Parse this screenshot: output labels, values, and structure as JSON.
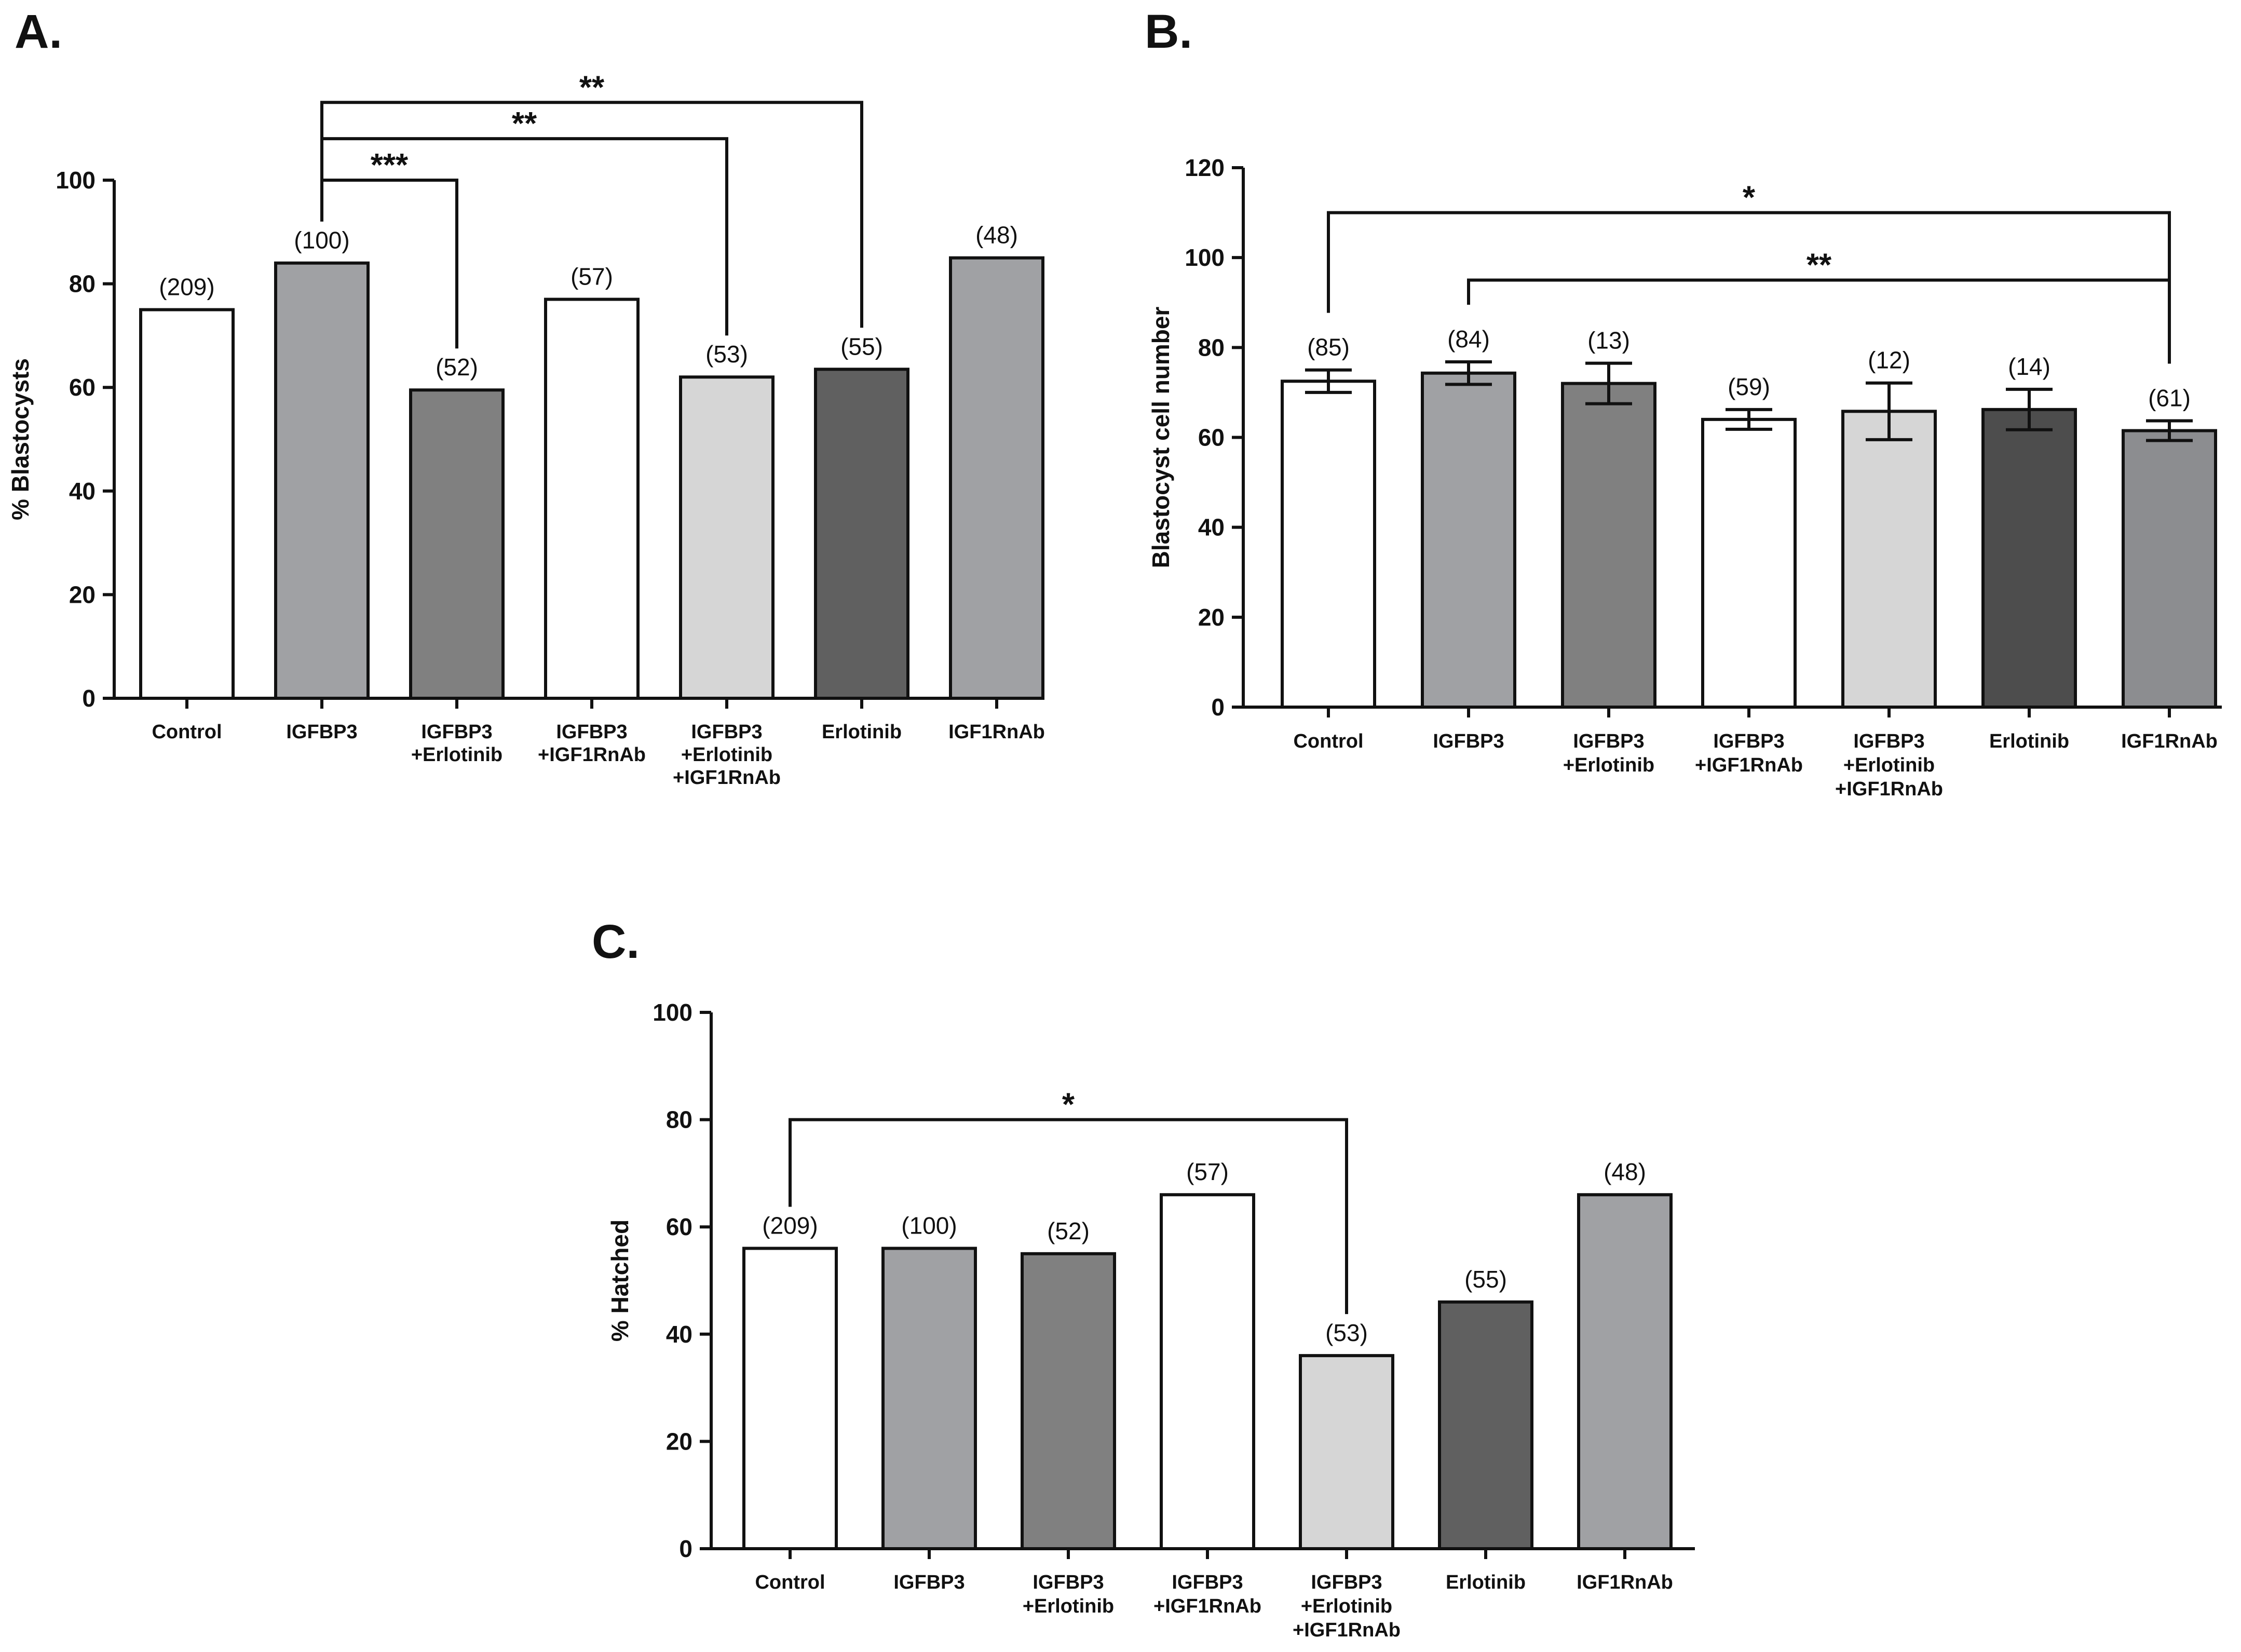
{
  "chart_data": [
    {
      "panel": "A.",
      "type": "bar",
      "ylabel": "% Blastocysts",
      "ylim": [
        0,
        100
      ],
      "yticks": [
        0,
        20,
        40,
        60,
        80,
        100
      ],
      "categories": [
        [
          "Control"
        ],
        [
          "IGFBP3"
        ],
        [
          "IGFBP3",
          "+Erlotinib"
        ],
        [
          "IGFBP3",
          "+IGF1RnAb"
        ],
        [
          "IGFBP3",
          "+Erlotinib",
          "+IGF1RnAb"
        ],
        [
          "Erlotinib"
        ],
        [
          "IGF1RnAb"
        ]
      ],
      "values": [
        75,
        84,
        59.5,
        77,
        62,
        63.5,
        85
      ],
      "n_labels": [
        "(209)",
        "(100)",
        "(52)",
        "(57)",
        "(53)",
        "(55)",
        "(48)"
      ],
      "colors": [
        "#ffffff",
        "#a0a1a4",
        "#808080",
        "#ffffff",
        "#d6d6d6",
        "#606060",
        "#a0a1a4"
      ],
      "significance": [
        {
          "from": 1,
          "to": 5,
          "label": "**",
          "y": 115
        },
        {
          "from": 1,
          "to": 4,
          "label": "**",
          "y": 108
        },
        {
          "from": 1,
          "to": 2,
          "label": "***",
          "y": 100
        }
      ]
    },
    {
      "panel": "B.",
      "type": "bar",
      "ylabel": "Blastocyst cell number",
      "ylim": [
        0,
        120
      ],
      "yticks": [
        0,
        20,
        40,
        60,
        80,
        100,
        120
      ],
      "categories": [
        [
          "Control"
        ],
        [
          "IGFBP3"
        ],
        [
          "IGFBP3",
          "+Erlotinib"
        ],
        [
          "IGFBP3",
          "+IGF1RnAb"
        ],
        [
          "IGFBP3",
          "+Erlotinib",
          "+IGF1RnAb"
        ],
        [
          "Erlotinib"
        ],
        [
          "IGF1RnAb"
        ]
      ],
      "values": [
        72.5,
        74.3,
        72,
        64,
        65.8,
        66.2,
        61.5
      ],
      "errors": [
        2.5,
        2.5,
        4.5,
        2.2,
        6.3,
        4.5,
        2.2
      ],
      "n_labels": [
        "(85)",
        "(84)",
        "(13)",
        "(59)",
        "(12)",
        "(14)",
        "(61)"
      ],
      "colors": [
        "#ffffff",
        "#a0a1a4",
        "#808080",
        "#ffffff",
        "#d6d6d6",
        "#4d4d4d",
        "#8c8d90"
      ],
      "significance": [
        {
          "from": 0,
          "to": 6,
          "label": "*",
          "y": 110
        },
        {
          "from": 1,
          "to": 6,
          "label": "**",
          "y": 95
        }
      ]
    },
    {
      "panel": "C.",
      "type": "bar",
      "ylabel": "% Hatched",
      "ylim": [
        0,
        100
      ],
      "yticks": [
        0,
        20,
        40,
        60,
        80,
        100
      ],
      "categories": [
        [
          "Control"
        ],
        [
          "IGFBP3"
        ],
        [
          "IGFBP3",
          "+Erlotinib"
        ],
        [
          "IGFBP3",
          "+IGF1RnAb"
        ],
        [
          "IGFBP3",
          "+Erlotinib",
          "+IGF1RnAb"
        ],
        [
          "Erlotinib"
        ],
        [
          "IGF1RnAb"
        ]
      ],
      "values": [
        56,
        56,
        55,
        66,
        36,
        46,
        66
      ],
      "n_labels": [
        "(209)",
        "(100)",
        "(52)",
        "(57)",
        "(53)",
        "(55)",
        "(48)"
      ],
      "colors": [
        "#ffffff",
        "#a0a1a4",
        "#808080",
        "#ffffff",
        "#d6d6d6",
        "#606060",
        "#a0a1a4"
      ],
      "significance": [
        {
          "from": 0,
          "to": 4,
          "label": "*",
          "y": 80
        }
      ]
    }
  ]
}
